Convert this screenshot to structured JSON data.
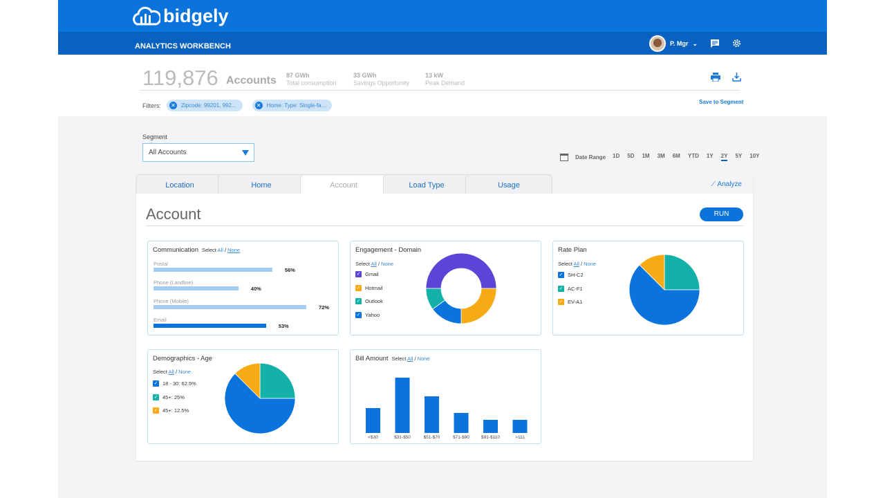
{
  "header": {
    "logo": "bidgely",
    "app_title": "ANALYTICS WORKBENCH",
    "user": "P. Mgr"
  },
  "summary": {
    "accounts_count": "119,876",
    "accounts_label": "Accounts",
    "stats": [
      {
        "value": "87 GWh",
        "label": "Total consumption"
      },
      {
        "value": "33 GWh",
        "label": "Savings Opportunity"
      },
      {
        "value": "13 kW",
        "label": "Peak Demand"
      }
    ],
    "filters_label": "Filters:",
    "filters": [
      "Zipcode: 99201, 992...",
      "Home: Type: Single-fa..."
    ],
    "save_label": "Save to Segment"
  },
  "segment": {
    "label": "Segment",
    "value": "All Accounts"
  },
  "date_range": {
    "label": "Date Range",
    "options": [
      "1D",
      "5D",
      "1M",
      "3M",
      "6M",
      "YTD",
      "1Y",
      "2Y",
      "5Y",
      "10Y"
    ],
    "selected": "2Y"
  },
  "tabs": [
    "Location",
    "Home",
    "Account",
    "Load Type",
    "Usage"
  ],
  "active_tab": "Account",
  "analyze_label": "Analyze",
  "main": {
    "title": "Account",
    "run_label": "RUN"
  },
  "select": {
    "prefix": "Select",
    "all": "All",
    "sep": "/",
    "none": "None"
  },
  "colors": {
    "blue": "#0b74dc",
    "light_blue": "#a3cdf2",
    "teal": "#14b1a8",
    "orange": "#f7aa14",
    "purple": "#5b45d6"
  },
  "chart_data": [
    {
      "type": "bar",
      "title": "Communication",
      "orientation": "horizontal",
      "categories": [
        "Postal",
        "Phone (Landline)",
        "Phone (Mobile)",
        "Email"
      ],
      "values": [
        56,
        40,
        72,
        53
      ],
      "labels": [
        "56%",
        "40%",
        "72%",
        "53%"
      ],
      "highlighted": "Email"
    },
    {
      "type": "pie",
      "title": "Engagement - Domain",
      "donut": true,
      "categories": [
        "Gmail",
        "Hotmail",
        "Outlook",
        "Yahoo"
      ],
      "values": [
        50,
        25,
        10,
        15
      ],
      "colors": [
        "#5b45d6",
        "#f7aa14",
        "#14b1a8",
        "#0b74dc"
      ]
    },
    {
      "type": "pie",
      "title": "Rate Plan",
      "categories": [
        "SH-C2",
        "AC-F1",
        "EV-A1"
      ],
      "values": [
        62.5,
        25,
        12.5
      ],
      "colors": [
        "#0b74dc",
        "#14b1a8",
        "#f7aa14"
      ]
    },
    {
      "type": "pie",
      "title": "Demographics - Age",
      "categories": [
        "18 - 30: 62.5%",
        "45+: 25%",
        "45+: 12.5%"
      ],
      "values": [
        62.5,
        25,
        12.5
      ],
      "colors": [
        "#0b74dc",
        "#14b1a8",
        "#f7aa14"
      ]
    },
    {
      "type": "bar",
      "title": "Bill Amount",
      "categories": [
        "<$30",
        "$31-$50",
        "$51-$70",
        "$71-$90",
        "$91-$110",
        ">111"
      ],
      "values": [
        36,
        80,
        53,
        29,
        19,
        19
      ]
    }
  ]
}
